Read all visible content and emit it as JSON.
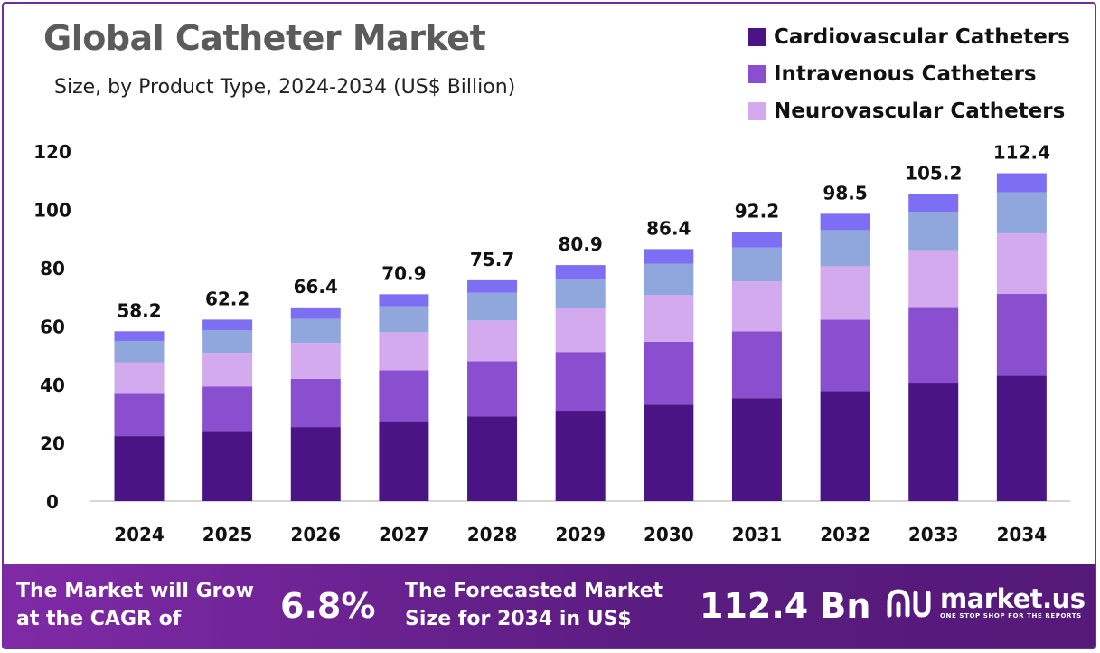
{
  "chart_data": {
    "type": "bar",
    "stacked": true,
    "title": "Global Catheter Market",
    "subtitle": "Size, by Product Type, 2024-2034 (US$ Billion)",
    "xlabel": "",
    "ylabel": "",
    "ylim": [
      0,
      120
    ],
    "yticks": [
      "0",
      "20",
      "40",
      "60",
      "80",
      "100",
      "120"
    ],
    "grid": false,
    "legend_position": "top-right",
    "categories": [
      "2024",
      "2025",
      "2026",
      "2027",
      "2028",
      "2029",
      "2030",
      "2031",
      "2032",
      "2033",
      "2034"
    ],
    "totals": [
      58.2,
      62.2,
      66.4,
      70.9,
      75.7,
      80.9,
      86.4,
      92.2,
      98.5,
      105.2,
      112.4
    ],
    "series": [
      {
        "name": "Cardiovascular Catheters",
        "color": "#4b1485",
        "values": [
          22.3,
          23.8,
          25.4,
          27.1,
          29.0,
          31.0,
          33.1,
          35.3,
          37.7,
          40.3,
          43.0
        ]
      },
      {
        "name": "Intravenous Catheters",
        "color": "#8a4fcf",
        "values": [
          14.5,
          15.5,
          16.5,
          17.7,
          18.9,
          20.1,
          21.5,
          22.9,
          24.5,
          26.2,
          28.0
        ]
      },
      {
        "name": "Neurovascular Catheters",
        "color": "#d4aaee",
        "values": [
          10.8,
          11.5,
          12.3,
          13.1,
          14.0,
          15.0,
          16.0,
          17.1,
          18.3,
          19.5,
          20.8
        ]
      },
      {
        "name": "",
        "color": "#8fa7dc",
        "values": [
          7.3,
          7.8,
          8.3,
          8.9,
          9.5,
          10.1,
          10.8,
          11.6,
          12.4,
          13.2,
          14.1
        ]
      },
      {
        "name": "",
        "color": "#7d6ef3",
        "values": [
          3.3,
          3.6,
          3.9,
          4.1,
          4.3,
          4.7,
          5.0,
          5.3,
          5.6,
          6.0,
          6.5
        ]
      }
    ]
  },
  "footer": {
    "cagr_text_line1": "The Market will Grow",
    "cagr_text_line2": "at the CAGR of",
    "cagr_value": "6.8%",
    "forecast_text_line1": "The Forecasted Market",
    "forecast_text_line2": "Size for 2034 in US$",
    "forecast_value": "112.4 Bn",
    "brand_name": "market.us",
    "brand_tagline": "ONE STOP SHOP FOR THE REPORTS"
  }
}
